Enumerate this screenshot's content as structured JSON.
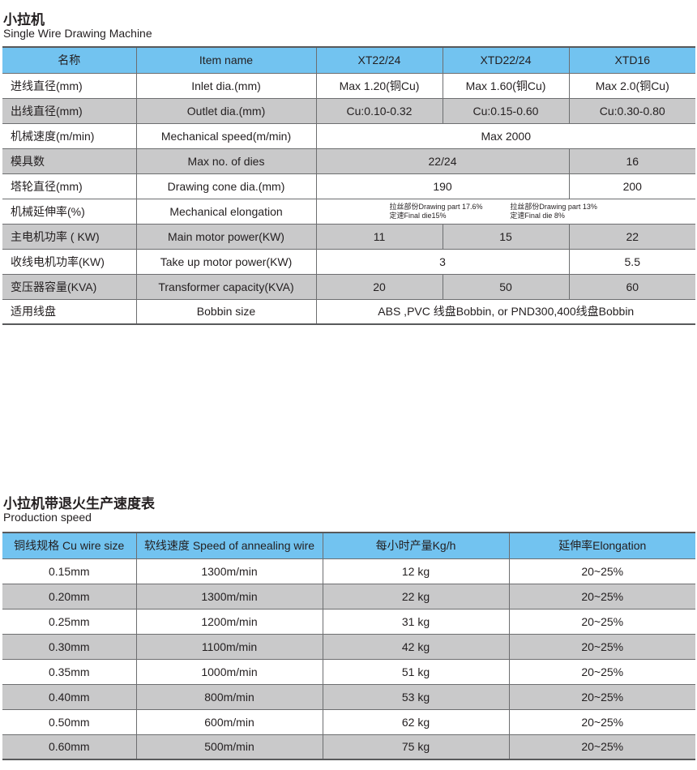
{
  "spec": {
    "title": "小拉机",
    "subtitle": "Single Wire Drawing Machine",
    "headers": [
      "名称",
      "Item name",
      "XT22/24",
      "XTD22/24",
      "XTD16"
    ],
    "rows": [
      {
        "cn": "进线直径(mm)",
        "en": "Inlet dia.(mm)",
        "v": [
          "Max 1.20(铜Cu)",
          "Max 1.60(铜Cu)",
          "Max 2.0(铜Cu)"
        ]
      },
      {
        "cn": "出线直径(mm)",
        "en": "Outlet dia.(mm)",
        "v": [
          "Cu:0.10-0.32",
          "Cu:0.15-0.60",
          "Cu:0.30-0.80"
        ]
      },
      {
        "cn": "机械速度(m/min)",
        "en": "Mechanical speed(m/min)",
        "v": [
          "Max 2000"
        ]
      },
      {
        "cn": "模具数",
        "en": "Max no. of dies",
        "v": [
          "22/24",
          "16"
        ]
      },
      {
        "cn": "塔轮直径(mm)",
        "en": "Drawing cone dia.(mm)",
        "v": [
          "190",
          "200"
        ]
      },
      {
        "cn": "机械延伸率(%)",
        "en": "Mechanical elongation",
        "v": [
          "拉丝部份Drawing part 17.6%",
          "定速Final die15%",
          "拉丝部份Drawing part 13%",
          "定速Final die 8%"
        ]
      },
      {
        "cn": "主电机功率 ( KW)",
        "en": "Main motor power(KW)",
        "v": [
          "11",
          "15",
          "22"
        ]
      },
      {
        "cn": "收线电机功率(KW)",
        "en": "Take up motor power(KW)",
        "v": [
          "3",
          "5.5"
        ]
      },
      {
        "cn": "变压器容量(KVA)",
        "en": "Transformer capacity(KVA)",
        "v": [
          "20",
          "50",
          "60"
        ]
      },
      {
        "cn": "适用线盘",
        "en": "Bobbin size",
        "v": [
          "ABS ,PVC 线盘Bobbin, or PND300,400线盘Bobbin"
        ]
      }
    ]
  },
  "speed": {
    "title": "小拉机带退火生产速度表",
    "subtitle": "Production speed",
    "headers": [
      "铜线规格 Cu wire size",
      "软线速度 Speed of annealing wire",
      "每小时产量Kg/h",
      "延伸率Elongation"
    ],
    "rows": [
      [
        "0.15mm",
        "1300m/min",
        "12 kg",
        "20~25%"
      ],
      [
        "0.20mm",
        "1300m/min",
        "22 kg",
        "20~25%"
      ],
      [
        "0.25mm",
        "1200m/min",
        "31 kg",
        "20~25%"
      ],
      [
        "0.30mm",
        "1100m/min",
        "42 kg",
        "20~25%"
      ],
      [
        "0.35mm",
        "1000m/min",
        "51 kg",
        "20~25%"
      ],
      [
        "0.40mm",
        "800m/min",
        "53 kg",
        "20~25%"
      ],
      [
        "0.50mm",
        "600m/min",
        "62 kg",
        "20~25%"
      ],
      [
        "0.60mm",
        "500m/min",
        "75 kg",
        "20~25%"
      ]
    ]
  },
  "colors": {
    "header": "#72c3f0",
    "stripe": "#c9c9ca"
  }
}
